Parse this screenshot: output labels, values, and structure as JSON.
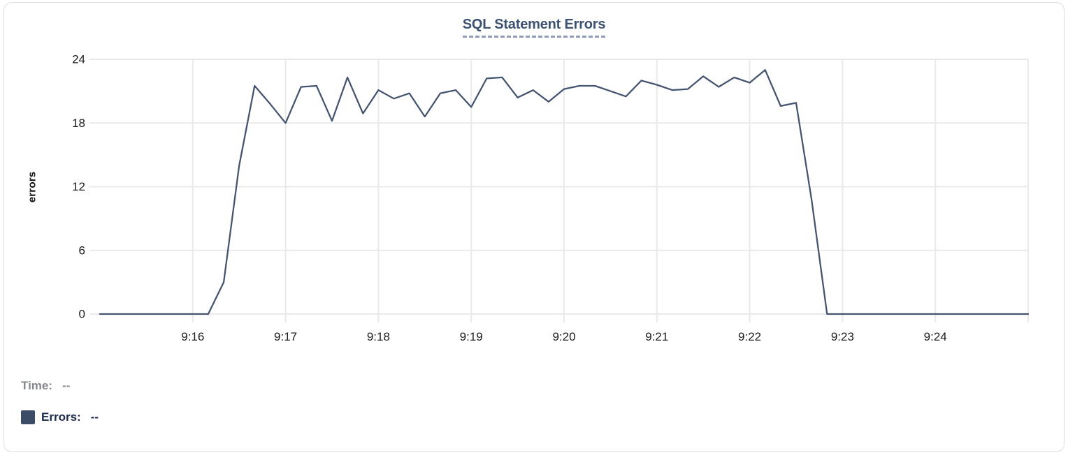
{
  "chart": {
    "title": "SQL Statement Errors",
    "y_axis_label": "errors"
  },
  "legend": {
    "time_label": "Time:",
    "time_value": "--",
    "errors_label": "Errors:",
    "errors_value": "--"
  },
  "colors": {
    "line": "#44536e",
    "title": "#3d5173",
    "title_underline": "#8e9cb8",
    "legend_swatch": "#3d4c66",
    "errors_text": "#1d2b4e",
    "time_text": "#85888e",
    "gridline": "#e9e9eb",
    "tick_text": "#1b1b1d",
    "card_border": "#dbdde1"
  },
  "chart_data": {
    "type": "line",
    "title": "SQL Statement Errors",
    "xlabel": "",
    "ylabel": "errors",
    "ylim": [
      0,
      24
    ],
    "y_ticks": [
      0,
      6,
      12,
      18,
      24
    ],
    "x_tick_labels": [
      "9:16",
      "9:17",
      "9:18",
      "9:19",
      "9:20",
      "9:21",
      "9:22",
      "9:23",
      "9:24"
    ],
    "x_range_time": [
      "9:15:00",
      "9:25:00"
    ],
    "grid": true,
    "legend_position": "bottom-left",
    "series": [
      {
        "name": "Errors",
        "color": "#44536e",
        "points": [
          [
            "9:15:00",
            0
          ],
          [
            "9:15:10",
            0
          ],
          [
            "9:15:20",
            0
          ],
          [
            "9:15:30",
            0
          ],
          [
            "9:15:40",
            0
          ],
          [
            "9:15:50",
            0
          ],
          [
            "9:16:00",
            0
          ],
          [
            "9:16:10",
            0
          ],
          [
            "9:16:20",
            3
          ],
          [
            "9:16:30",
            14
          ],
          [
            "9:16:40",
            21.5
          ],
          [
            "9:16:50",
            19.8
          ],
          [
            "9:17:00",
            18
          ],
          [
            "9:17:10",
            21.4
          ],
          [
            "9:17:20",
            21.5
          ],
          [
            "9:17:30",
            18.2
          ],
          [
            "9:17:40",
            22.3
          ],
          [
            "9:17:50",
            18.9
          ],
          [
            "9:18:00",
            21.1
          ],
          [
            "9:18:10",
            20.3
          ],
          [
            "9:18:20",
            20.8
          ],
          [
            "9:18:30",
            18.6
          ],
          [
            "9:18:40",
            20.8
          ],
          [
            "9:18:50",
            21.1
          ],
          [
            "9:19:00",
            19.5
          ],
          [
            "9:19:10",
            22.2
          ],
          [
            "9:19:20",
            22.3
          ],
          [
            "9:19:30",
            20.4
          ],
          [
            "9:19:40",
            21.1
          ],
          [
            "9:19:50",
            20
          ],
          [
            "9:20:00",
            21.2
          ],
          [
            "9:20:10",
            21.5
          ],
          [
            "9:20:20",
            21.5
          ],
          [
            "9:20:30",
            21
          ],
          [
            "9:20:40",
            20.5
          ],
          [
            "9:20:50",
            22
          ],
          [
            "9:21:00",
            21.6
          ],
          [
            "9:21:10",
            21.1
          ],
          [
            "9:21:20",
            21.2
          ],
          [
            "9:21:30",
            22.4
          ],
          [
            "9:21:40",
            21.4
          ],
          [
            "9:21:50",
            22.3
          ],
          [
            "9:22:00",
            21.8
          ],
          [
            "9:22:10",
            23
          ],
          [
            "9:22:20",
            19.6
          ],
          [
            "9:22:30",
            19.9
          ],
          [
            "9:22:40",
            10.8
          ],
          [
            "9:22:50",
            0
          ],
          [
            "9:23:00",
            0
          ],
          [
            "9:23:10",
            0
          ],
          [
            "9:23:20",
            0
          ],
          [
            "9:23:30",
            0
          ],
          [
            "9:23:40",
            0
          ],
          [
            "9:23:50",
            0
          ],
          [
            "9:24:00",
            0
          ],
          [
            "9:24:10",
            0
          ],
          [
            "9:24:20",
            0
          ],
          [
            "9:24:30",
            0
          ],
          [
            "9:24:40",
            0
          ],
          [
            "9:24:50",
            0
          ],
          [
            "9:25:00",
            0
          ]
        ]
      }
    ]
  }
}
